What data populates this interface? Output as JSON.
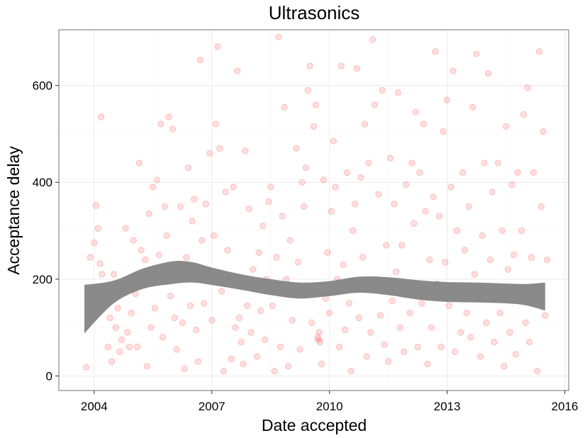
{
  "chart_data": {
    "type": "scatter",
    "title": "Ultrasonics",
    "xlabel": "Date accepted",
    "ylabel": "Acceptance delay",
    "xlim": [
      2003.1,
      2016.1
    ],
    "ylim": [
      -30,
      715
    ],
    "x_ticks": [
      2004,
      2007,
      2010,
      2013,
      2016
    ],
    "x_tick_labels": [
      "2004",
      "2007",
      "2010",
      "2013",
      "2016"
    ],
    "y_ticks": [
      0,
      200,
      400,
      600
    ],
    "y_tick_labels": [
      "0",
      "200",
      "400",
      "600"
    ],
    "grid": true,
    "point_color": "#ff0000",
    "band_color": "#808080",
    "points": [
      [
        2003.8,
        18
      ],
      [
        2003.9,
        245
      ],
      [
        2004.0,
        275
      ],
      [
        2004.05,
        352
      ],
      [
        2004.1,
        305
      ],
      [
        2004.15,
        232
      ],
      [
        2004.18,
        535
      ],
      [
        2004.2,
        210
      ],
      [
        2004.25,
        180
      ],
      [
        2004.3,
        160
      ],
      [
        2004.35,
        60
      ],
      [
        2004.4,
        120
      ],
      [
        2004.45,
        30
      ],
      [
        2004.5,
        210
      ],
      [
        2004.55,
        100
      ],
      [
        2004.6,
        140
      ],
      [
        2004.65,
        50
      ],
      [
        2004.7,
        75
      ],
      [
        2004.75,
        180
      ],
      [
        2004.8,
        305
      ],
      [
        2004.85,
        90
      ],
      [
        2004.9,
        60
      ],
      [
        2004.95,
        130
      ],
      [
        2005.0,
        280
      ],
      [
        2005.05,
        170
      ],
      [
        2005.1,
        60
      ],
      [
        2005.15,
        440
      ],
      [
        2005.2,
        260
      ],
      [
        2005.25,
        190
      ],
      [
        2005.3,
        240
      ],
      [
        2005.35,
        20
      ],
      [
        2005.4,
        335
      ],
      [
        2005.45,
        100
      ],
      [
        2005.5,
        390
      ],
      [
        2005.55,
        140
      ],
      [
        2005.6,
        405
      ],
      [
        2005.65,
        250
      ],
      [
        2005.7,
        520
      ],
      [
        2005.75,
        80
      ],
      [
        2005.8,
        350
      ],
      [
        2005.85,
        290
      ],
      [
        2005.9,
        535
      ],
      [
        2005.95,
        165
      ],
      [
        2006.0,
        510
      ],
      [
        2006.05,
        120
      ],
      [
        2006.1,
        55
      ],
      [
        2006.15,
        210
      ],
      [
        2006.2,
        350
      ],
      [
        2006.25,
        110
      ],
      [
        2006.3,
        15
      ],
      [
        2006.35,
        245
      ],
      [
        2006.4,
        430
      ],
      [
        2006.45,
        145
      ],
      [
        2006.5,
        320
      ],
      [
        2006.55,
        365
      ],
      [
        2006.6,
        95
      ],
      [
        2006.65,
        30
      ],
      [
        2006.7,
        652
      ],
      [
        2006.75,
        280
      ],
      [
        2006.8,
        150
      ],
      [
        2006.85,
        355
      ],
      [
        2006.9,
        215
      ],
      [
        2006.95,
        460
      ],
      [
        2007.0,
        115
      ],
      [
        2007.05,
        290
      ],
      [
        2007.1,
        520
      ],
      [
        2007.15,
        680
      ],
      [
        2007.2,
        470
      ],
      [
        2007.25,
        175
      ],
      [
        2007.3,
        10
      ],
      [
        2007.35,
        380
      ],
      [
        2007.4,
        260
      ],
      [
        2007.45,
        205
      ],
      [
        2007.5,
        35
      ],
      [
        2007.55,
        390
      ],
      [
        2007.6,
        100
      ],
      [
        2007.65,
        630
      ],
      [
        2007.7,
        120
      ],
      [
        2007.75,
        70
      ],
      [
        2007.8,
        25
      ],
      [
        2007.85,
        465
      ],
      [
        2007.9,
        145
      ],
      [
        2007.95,
        345
      ],
      [
        2008.0,
        90
      ],
      [
        2008.05,
        220
      ],
      [
        2008.1,
        180
      ],
      [
        2008.15,
        40
      ],
      [
        2008.2,
        255
      ],
      [
        2008.25,
        135
      ],
      [
        2008.3,
        310
      ],
      [
        2008.35,
        75
      ],
      [
        2008.4,
        200
      ],
      [
        2008.45,
        360
      ],
      [
        2008.5,
        390
      ],
      [
        2008.55,
        145
      ],
      [
        2008.6,
        10
      ],
      [
        2008.65,
        245
      ],
      [
        2008.7,
        700
      ],
      [
        2008.75,
        60
      ],
      [
        2008.8,
        330
      ],
      [
        2008.85,
        555
      ],
      [
        2008.9,
        200
      ],
      [
        2008.95,
        20
      ],
      [
        2009.0,
        280
      ],
      [
        2009.05,
        115
      ],
      [
        2009.1,
        175
      ],
      [
        2009.15,
        470
      ],
      [
        2009.2,
        235
      ],
      [
        2009.25,
        55
      ],
      [
        2009.3,
        400
      ],
      [
        2009.35,
        350
      ],
      [
        2009.4,
        430
      ],
      [
        2009.45,
        590
      ],
      [
        2009.5,
        640
      ],
      [
        2009.55,
        110
      ],
      [
        2009.6,
        515
      ],
      [
        2009.65,
        560
      ],
      [
        2009.7,
        80
      ],
      [
        2009.72,
        75
      ],
      [
        2009.74,
        90
      ],
      [
        2009.76,
        70
      ],
      [
        2009.8,
        25
      ],
      [
        2009.85,
        405
      ],
      [
        2009.9,
        160
      ],
      [
        2009.95,
        255
      ],
      [
        2010.0,
        130
      ],
      [
        2010.05,
        340
      ],
      [
        2010.1,
        485
      ],
      [
        2010.15,
        390
      ],
      [
        2010.2,
        200
      ],
      [
        2010.25,
        60
      ],
      [
        2010.3,
        640
      ],
      [
        2010.35,
        230
      ],
      [
        2010.4,
        95
      ],
      [
        2010.45,
        420
      ],
      [
        2010.5,
        150
      ],
      [
        2010.55,
        10
      ],
      [
        2010.6,
        300
      ],
      [
        2010.65,
        355
      ],
      [
        2010.7,
        635
      ],
      [
        2010.75,
        120
      ],
      [
        2010.8,
        410
      ],
      [
        2010.85,
        245
      ],
      [
        2010.9,
        520
      ],
      [
        2010.95,
        40
      ],
      [
        2011.0,
        440
      ],
      [
        2011.05,
        90
      ],
      [
        2011.1,
        695
      ],
      [
        2011.15,
        560
      ],
      [
        2011.2,
        200
      ],
      [
        2011.25,
        375
      ],
      [
        2011.3,
        125
      ],
      [
        2011.35,
        590
      ],
      [
        2011.4,
        65
      ],
      [
        2011.45,
        270
      ],
      [
        2011.5,
        30
      ],
      [
        2011.55,
        450
      ],
      [
        2011.6,
        155
      ],
      [
        2011.65,
        355
      ],
      [
        2011.7,
        215
      ],
      [
        2011.75,
        585
      ],
      [
        2011.8,
        100
      ],
      [
        2011.85,
        270
      ],
      [
        2011.9,
        50
      ],
      [
        2011.95,
        395
      ],
      [
        2012.0,
        190
      ],
      [
        2012.05,
        130
      ],
      [
        2012.1,
        440
      ],
      [
        2012.15,
        315
      ],
      [
        2012.2,
        545
      ],
      [
        2012.25,
        60
      ],
      [
        2012.3,
        420
      ],
      [
        2012.35,
        150
      ],
      [
        2012.4,
        520
      ],
      [
        2012.45,
        340
      ],
      [
        2012.5,
        25
      ],
      [
        2012.55,
        240
      ],
      [
        2012.6,
        100
      ],
      [
        2012.65,
        370
      ],
      [
        2012.7,
        670
      ],
      [
        2012.75,
        190
      ],
      [
        2012.8,
        330
      ],
      [
        2012.85,
        60
      ],
      [
        2012.9,
        505
      ],
      [
        2012.95,
        235
      ],
      [
        2013.0,
        570
      ],
      [
        2013.05,
        145
      ],
      [
        2013.1,
        390
      ],
      [
        2013.15,
        630
      ],
      [
        2013.2,
        50
      ],
      [
        2013.25,
        300
      ],
      [
        2013.3,
        185
      ],
      [
        2013.35,
        90
      ],
      [
        2013.4,
        420
      ],
      [
        2013.45,
        260
      ],
      [
        2013.5,
        130
      ],
      [
        2013.55,
        350
      ],
      [
        2013.6,
        80
      ],
      [
        2013.65,
        555
      ],
      [
        2013.7,
        210
      ],
      [
        2013.75,
        665
      ],
      [
        2013.8,
        160
      ],
      [
        2013.85,
        40
      ],
      [
        2013.9,
        290
      ],
      [
        2013.95,
        440
      ],
      [
        2014.0,
        110
      ],
      [
        2014.05,
        625
      ],
      [
        2014.1,
        240
      ],
      [
        2014.15,
        380
      ],
      [
        2014.2,
        70
      ],
      [
        2014.25,
        175
      ],
      [
        2014.3,
        440
      ],
      [
        2014.35,
        130
      ],
      [
        2014.4,
        300
      ],
      [
        2014.45,
        20
      ],
      [
        2014.5,
        515
      ],
      [
        2014.55,
        220
      ],
      [
        2014.6,
        90
      ],
      [
        2014.65,
        395
      ],
      [
        2014.7,
        250
      ],
      [
        2014.75,
        45
      ],
      [
        2014.8,
        420
      ],
      [
        2014.85,
        160
      ],
      [
        2014.9,
        300
      ],
      [
        2014.95,
        540
      ],
      [
        2015.0,
        110
      ],
      [
        2015.05,
        595
      ],
      [
        2015.1,
        70
      ],
      [
        2015.15,
        245
      ],
      [
        2015.2,
        420
      ],
      [
        2015.25,
        180
      ],
      [
        2015.3,
        10
      ],
      [
        2015.35,
        670
      ],
      [
        2015.4,
        350
      ],
      [
        2015.45,
        505
      ],
      [
        2015.5,
        125
      ],
      [
        2015.55,
        240
      ]
    ],
    "smooth_band": {
      "x": [
        2003.75,
        2004.5,
        2005.25,
        2006.0,
        2006.5,
        2007.0,
        2007.75,
        2008.5,
        2009.25,
        2010.0,
        2010.75,
        2011.5,
        2012.25,
        2013.0,
        2013.75,
        2014.5,
        2015.0,
        2015.5
      ],
      "lower": [
        88,
        150,
        180,
        190,
        193,
        188,
        178,
        167,
        160,
        165,
        172,
        167,
        158,
        153,
        152,
        150,
        146,
        135
      ],
      "upper": [
        188,
        197,
        222,
        237,
        235,
        224,
        210,
        200,
        193,
        196,
        205,
        204,
        198,
        194,
        193,
        191,
        190,
        193
      ]
    }
  }
}
